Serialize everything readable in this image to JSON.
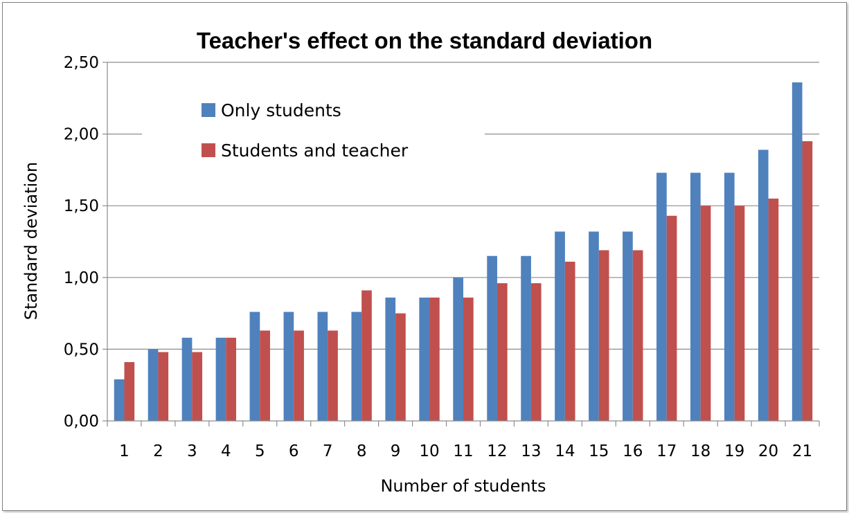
{
  "chart_data": {
    "type": "bar",
    "title": "Teacher's effect on the standard deviation",
    "xlabel": "Number of students",
    "ylabel": "Standard deviation",
    "ylim": [
      0,
      2.5
    ],
    "yticks": [
      "0,00",
      "0,50",
      "1,00",
      "1,50",
      "2,00",
      "2,50"
    ],
    "ytick_values": [
      0,
      0.5,
      1.0,
      1.5,
      2.0,
      2.5
    ],
    "categories": [
      "1",
      "2",
      "3",
      "4",
      "5",
      "6",
      "7",
      "8",
      "9",
      "10",
      "11",
      "12",
      "13",
      "14",
      "15",
      "16",
      "17",
      "18",
      "19",
      "20",
      "21"
    ],
    "grid": true,
    "legend_position": "top-left inside plot",
    "series": [
      {
        "name": "Only students",
        "color": "#4f81bd",
        "values": [
          0.29,
          0.5,
          0.58,
          0.58,
          0.76,
          0.76,
          0.76,
          0.76,
          0.86,
          0.86,
          1.0,
          1.15,
          1.15,
          1.32,
          1.32,
          1.32,
          1.73,
          1.73,
          1.73,
          1.89,
          2.36
        ]
      },
      {
        "name": "Students and teacher",
        "color": "#c0504d",
        "values": [
          0.41,
          0.48,
          0.48,
          0.58,
          0.63,
          0.63,
          0.63,
          0.91,
          0.75,
          0.86,
          0.86,
          0.96,
          0.96,
          1.11,
          1.19,
          1.19,
          1.43,
          1.5,
          1.5,
          1.55,
          1.95
        ]
      }
    ]
  }
}
